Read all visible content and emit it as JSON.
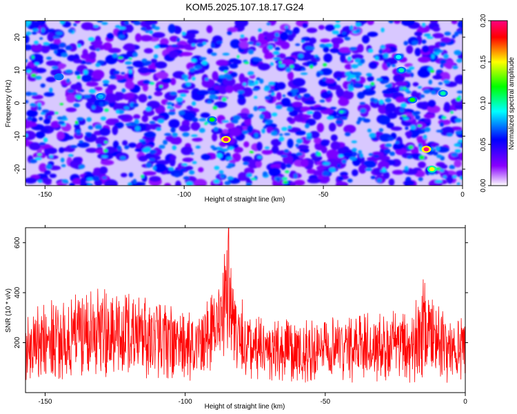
{
  "figure_title": "KOM5.2025.107.18.17.G24",
  "chart_data": [
    {
      "type": "heatmap",
      "title": "KOM5.2025.107.18.17.G24",
      "xlabel": "Height of straight line (km)",
      "ylabel": "Frequency (Hz)",
      "xlim": [
        -157,
        0
      ],
      "ylim": [
        -25,
        25
      ],
      "xticks": [
        -150,
        -100,
        -50,
        0
      ],
      "xtick_labels": [
        "-150",
        "-100",
        "-50",
        "0"
      ],
      "yticks": [
        -20,
        -10,
        0,
        10,
        20
      ],
      "ytick_labels": [
        "-20",
        "-10",
        "0",
        "10",
        "20"
      ],
      "colorbar": {
        "label": "Normalized spectral amplitude",
        "range": [
          0,
          0.2
        ],
        "ticks": [
          0,
          0.05,
          0.1,
          0.15,
          0.2
        ],
        "tick_labels": [
          "0.00",
          "0.05",
          "0.10",
          "0.15",
          "0.20"
        ],
        "colors": [
          "#ffffff",
          "#8800ff",
          "#0000ff",
          "#00ffff",
          "#00ff00",
          "#ffff00",
          "#ff0000",
          "#ff0080"
        ]
      },
      "highlights": [
        {
          "x": -85,
          "y": -11,
          "value": 0.2
        },
        {
          "x": -13,
          "y": -14,
          "value": 0.2
        },
        {
          "x": -90,
          "y": -5,
          "value": 0.12
        },
        {
          "x": -18,
          "y": 1,
          "value": 0.12
        },
        {
          "x": -22,
          "y": 10,
          "value": 0.1
        },
        {
          "x": -11,
          "y": -20,
          "value": 0.15
        },
        {
          "x": -7,
          "y": 3,
          "value": 0.1
        },
        {
          "x": -23,
          "y": 14,
          "value": 0.09
        },
        {
          "x": -130,
          "y": 2,
          "value": 0.08
        },
        {
          "x": -145,
          "y": 8,
          "value": 0.07
        }
      ],
      "grid": false
    },
    {
      "type": "line",
      "xlabel": "Height of straight line (km)",
      "ylabel": "SNR (10 * v/v)",
      "xlim": [
        -157,
        0
      ],
      "ylim": [
        0,
        660
      ],
      "xticks": [
        -150,
        -100,
        -50,
        0
      ],
      "xtick_labels": [
        "-150",
        "-100",
        "-50",
        "0"
      ],
      "yticks": [
        200,
        400,
        600
      ],
      "ytick_labels": [
        "200",
        "400",
        "600"
      ],
      "series_color": "#ff0000",
      "envelope": {
        "x": [
          -157,
          -150,
          -140,
          -130,
          -120,
          -110,
          -100,
          -95,
          -90,
          -87,
          -85,
          -83,
          -80,
          -75,
          -70,
          -60,
          -50,
          -40,
          -30,
          -20,
          -15,
          -10,
          -5,
          0
        ],
        "typical_min": [
          40,
          50,
          55,
          50,
          55,
          50,
          45,
          50,
          80,
          120,
          140,
          110,
          60,
          50,
          45,
          40,
          40,
          40,
          40,
          40,
          40,
          40,
          40,
          40
        ],
        "typical_max": [
          300,
          380,
          400,
          430,
          400,
          370,
          320,
          330,
          400,
          500,
          660,
          480,
          380,
          310,
          300,
          290,
          300,
          310,
          330,
          340,
          470,
          350,
          320,
          290
        ]
      },
      "peak": {
        "x": -84.5,
        "y": 660
      },
      "grid": false
    }
  ]
}
